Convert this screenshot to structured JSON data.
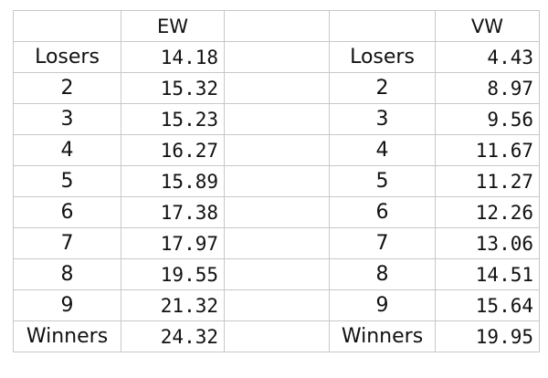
{
  "headers": {
    "left_label": "",
    "left_value": "EW",
    "spacer": "",
    "right_label": "",
    "right_value": "VW"
  },
  "rows": [
    {
      "left_label": "Losers",
      "left_value": "14.18",
      "right_label": "Losers",
      "right_value": "4.43"
    },
    {
      "left_label": "2",
      "left_value": "15.32",
      "right_label": "2",
      "right_value": "8.97"
    },
    {
      "left_label": "3",
      "left_value": "15.23",
      "right_label": "3",
      "right_value": "9.56"
    },
    {
      "left_label": "4",
      "left_value": "16.27",
      "right_label": "4",
      "right_value": "11.67"
    },
    {
      "left_label": "5",
      "left_value": "15.89",
      "right_label": "5",
      "right_value": "11.27"
    },
    {
      "left_label": "6",
      "left_value": "17.38",
      "right_label": "6",
      "right_value": "12.26"
    },
    {
      "left_label": "7",
      "left_value": "17.97",
      "right_label": "7",
      "right_value": "13.06"
    },
    {
      "left_label": "8",
      "left_value": "19.55",
      "right_label": "8",
      "right_value": "14.51"
    },
    {
      "left_label": "9",
      "left_value": "21.32",
      "right_label": "9",
      "right_value": "15.64"
    },
    {
      "left_label": "Winners",
      "left_value": "24.32",
      "right_label": "Winners",
      "right_value": "19.95"
    }
  ]
}
